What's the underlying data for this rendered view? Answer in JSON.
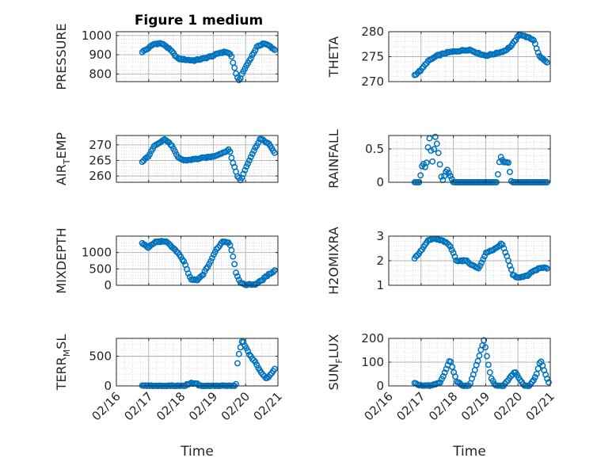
{
  "figure": {
    "title": "Figure 1 medium"
  },
  "chart_data": [
    {
      "type": "scatter",
      "ylabel": "PRESSURE",
      "xlim": [
        0,
        5
      ],
      "ylim": [
        760,
        1020
      ],
      "yticks": [
        800,
        900,
        1000
      ],
      "xticks": [
        "02/16",
        "02/17",
        "02/18",
        "02/19",
        "02/20",
        "02/21"
      ],
      "grid": true,
      "xtick_labels": false,
      "anchors": [
        [
          0.8,
          915
        ],
        [
          1.0,
          935
        ],
        [
          1.15,
          955
        ],
        [
          1.35,
          960
        ],
        [
          1.5,
          950
        ],
        [
          1.7,
          920
        ],
        [
          1.9,
          880
        ],
        [
          2.1,
          875
        ],
        [
          2.4,
          870
        ],
        [
          2.7,
          880
        ],
        [
          3.0,
          895
        ],
        [
          3.2,
          910
        ],
        [
          3.4,
          915
        ],
        [
          3.55,
          900
        ],
        [
          3.7,
          800
        ],
        [
          3.8,
          765
        ],
        [
          3.95,
          820
        ],
        [
          4.15,
          880
        ],
        [
          4.35,
          940
        ],
        [
          4.55,
          960
        ],
        [
          4.75,
          945
        ],
        [
          4.9,
          925
        ]
      ]
    },
    {
      "type": "scatter",
      "ylabel": "THETA",
      "xlim": [
        0,
        5
      ],
      "ylim": [
        270,
        280
      ],
      "yticks": [
        270,
        275,
        280
      ],
      "xticks": [
        "02/16",
        "02/17",
        "02/18",
        "02/19",
        "02/20",
        "02/21"
      ],
      "grid": true,
      "xtick_labels": false,
      "anchors": [
        [
          0.8,
          271.3
        ],
        [
          1.0,
          272.3
        ],
        [
          1.2,
          274.0
        ],
        [
          1.5,
          275.2
        ],
        [
          1.8,
          275.8
        ],
        [
          2.1,
          276.1
        ],
        [
          2.5,
          276.4
        ],
        [
          2.8,
          275.6
        ],
        [
          3.0,
          275.2
        ],
        [
          3.3,
          275.6
        ],
        [
          3.6,
          276.2
        ],
        [
          3.8,
          277.2
        ],
        [
          4.05,
          279.5
        ],
        [
          4.25,
          279.0
        ],
        [
          4.5,
          278.3
        ],
        [
          4.65,
          275.2
        ],
        [
          4.9,
          273.8
        ]
      ]
    },
    {
      "type": "scatter",
      "ylabel": "AIR_TEMP",
      "xlim": [
        0,
        5
      ],
      "ylim": [
        258,
        273
      ],
      "yticks": [
        260,
        265,
        270
      ],
      "xticks": [
        "02/16",
        "02/17",
        "02/18",
        "02/19",
        "02/20",
        "02/21"
      ],
      "grid": true,
      "xtick_labels": false,
      "anchors": [
        [
          0.8,
          264.5
        ],
        [
          1.0,
          266.5
        ],
        [
          1.2,
          270.0
        ],
        [
          1.5,
          271.8
        ],
        [
          1.7,
          270.0
        ],
        [
          1.9,
          266.0
        ],
        [
          2.1,
          265.0
        ],
        [
          2.5,
          265.5
        ],
        [
          3.0,
          266.3
        ],
        [
          3.3,
          267.5
        ],
        [
          3.5,
          268.5
        ],
        [
          3.6,
          264.5
        ],
        [
          3.75,
          260.0
        ],
        [
          3.85,
          258.5
        ],
        [
          4.0,
          262.5
        ],
        [
          4.2,
          267.0
        ],
        [
          4.45,
          272.0
        ],
        [
          4.7,
          270.5
        ],
        [
          4.9,
          267.5
        ]
      ]
    },
    {
      "type": "scatter",
      "ylabel": "RAINFALL",
      "xlim": [
        0,
        5
      ],
      "ylim": [
        0,
        0.7
      ],
      "yticks": [
        0,
        0.5
      ],
      "xticks": [
        "02/16",
        "02/17",
        "02/18",
        "02/19",
        "02/20",
        "02/21"
      ],
      "grid": true,
      "xtick_labels": false,
      "anchors": [
        [
          0.8,
          0
        ],
        [
          0.95,
          0
        ],
        [
          1.05,
          0.3
        ],
        [
          1.15,
          0.2
        ],
        [
          1.25,
          0.7
        ],
        [
          1.35,
          0.3
        ],
        [
          1.45,
          0.7
        ],
        [
          1.55,
          0.4
        ],
        [
          1.65,
          0
        ],
        [
          1.8,
          0.2
        ],
        [
          1.9,
          0.1
        ],
        [
          2.0,
          0
        ],
        [
          2.5,
          0
        ],
        [
          3.0,
          0
        ],
        [
          3.35,
          0
        ],
        [
          3.45,
          0.4
        ],
        [
          3.55,
          0.3
        ],
        [
          3.7,
          0.3
        ],
        [
          3.8,
          0
        ],
        [
          4.2,
          0
        ],
        [
          4.6,
          0
        ],
        [
          4.9,
          0
        ]
      ]
    },
    {
      "type": "scatter",
      "ylabel": "MIXDEPTH",
      "xlim": [
        0,
        5
      ],
      "ylim": [
        0,
        1500
      ],
      "yticks": [
        0,
        500,
        1000
      ],
      "xticks": [
        "02/16",
        "02/17",
        "02/18",
        "02/19",
        "02/20",
        "02/21"
      ],
      "grid": true,
      "xtick_labels": false,
      "anchors": [
        [
          0.8,
          1280
        ],
        [
          1.0,
          1150
        ],
        [
          1.2,
          1320
        ],
        [
          1.5,
          1350
        ],
        [
          1.7,
          1200
        ],
        [
          1.9,
          1000
        ],
        [
          2.1,
          700
        ],
        [
          2.3,
          180
        ],
        [
          2.5,
          150
        ],
        [
          2.7,
          350
        ],
        [
          2.9,
          700
        ],
        [
          3.1,
          1100
        ],
        [
          3.3,
          1350
        ],
        [
          3.5,
          1300
        ],
        [
          3.6,
          950
        ],
        [
          3.7,
          400
        ],
        [
          3.85,
          50
        ],
        [
          4.0,
          20
        ],
        [
          4.3,
          30
        ],
        [
          4.5,
          150
        ],
        [
          4.7,
          320
        ],
        [
          4.9,
          450
        ]
      ]
    },
    {
      "type": "scatter",
      "ylabel": "H2OMIXRA",
      "xlim": [
        0,
        5
      ],
      "ylim": [
        1,
        3
      ],
      "yticks": [
        1,
        2,
        3
      ],
      "xticks": [
        "02/16",
        "02/17",
        "02/18",
        "02/19",
        "02/20",
        "02/21"
      ],
      "grid": true,
      "xtick_labels": false,
      "anchors": [
        [
          0.8,
          2.1
        ],
        [
          1.0,
          2.4
        ],
        [
          1.2,
          2.8
        ],
        [
          1.4,
          2.9
        ],
        [
          1.7,
          2.8
        ],
        [
          1.9,
          2.6
        ],
        [
          2.1,
          2.0
        ],
        [
          2.4,
          2.0
        ],
        [
          2.6,
          1.8
        ],
        [
          2.8,
          1.7
        ],
        [
          3.0,
          2.3
        ],
        [
          3.3,
          2.5
        ],
        [
          3.5,
          2.7
        ],
        [
          3.65,
          2.2
        ],
        [
          3.85,
          1.4
        ],
        [
          4.05,
          1.3
        ],
        [
          4.3,
          1.4
        ],
        [
          4.5,
          1.6
        ],
        [
          4.7,
          1.7
        ],
        [
          4.9,
          1.7
        ]
      ]
    },
    {
      "type": "scatter",
      "ylabel": "TERR_MSL",
      "xlim": [
        0,
        5
      ],
      "ylim": [
        0,
        800
      ],
      "yticks": [
        0,
        500
      ],
      "xticks": [
        "02/16",
        "02/17",
        "02/18",
        "02/19",
        "02/20",
        "02/21"
      ],
      "grid": true,
      "xtick_labels": true,
      "xlabel": "Time",
      "anchors": [
        [
          0.8,
          0
        ],
        [
          1.5,
          0
        ],
        [
          2.1,
          0
        ],
        [
          2.25,
          40
        ],
        [
          2.45,
          50
        ],
        [
          2.6,
          0
        ],
        [
          3.0,
          0
        ],
        [
          3.5,
          0
        ],
        [
          3.7,
          0
        ],
        [
          3.72,
          300
        ],
        [
          3.8,
          550
        ],
        [
          3.9,
          780
        ],
        [
          4.0,
          650
        ],
        [
          4.15,
          500
        ],
        [
          4.3,
          400
        ],
        [
          4.5,
          200
        ],
        [
          4.65,
          130
        ],
        [
          4.8,
          200
        ],
        [
          4.9,
          280
        ]
      ]
    },
    {
      "type": "scatter",
      "ylabel": "SUN_FLUX",
      "xlim": [
        0,
        5
      ],
      "ylim": [
        0,
        200
      ],
      "yticks": [
        0,
        100,
        200
      ],
      "xticks": [
        "02/16",
        "02/17",
        "02/18",
        "02/19",
        "02/20",
        "02/21"
      ],
      "grid": true,
      "xtick_labels": true,
      "xlabel": "Time",
      "anchors": [
        [
          0.8,
          10
        ],
        [
          1.0,
          2
        ],
        [
          1.3,
          0
        ],
        [
          1.6,
          15
        ],
        [
          1.9,
          110
        ],
        [
          2.1,
          20
        ],
        [
          2.3,
          0
        ],
        [
          2.5,
          0
        ],
        [
          2.7,
          80
        ],
        [
          2.95,
          195
        ],
        [
          3.15,
          40
        ],
        [
          3.3,
          0
        ],
        [
          3.55,
          0
        ],
        [
          3.75,
          35
        ],
        [
          3.9,
          60
        ],
        [
          4.05,
          30
        ],
        [
          4.2,
          0
        ],
        [
          4.35,
          0
        ],
        [
          4.55,
          40
        ],
        [
          4.7,
          110
        ],
        [
          4.85,
          50
        ],
        [
          4.95,
          15
        ]
      ]
    }
  ]
}
